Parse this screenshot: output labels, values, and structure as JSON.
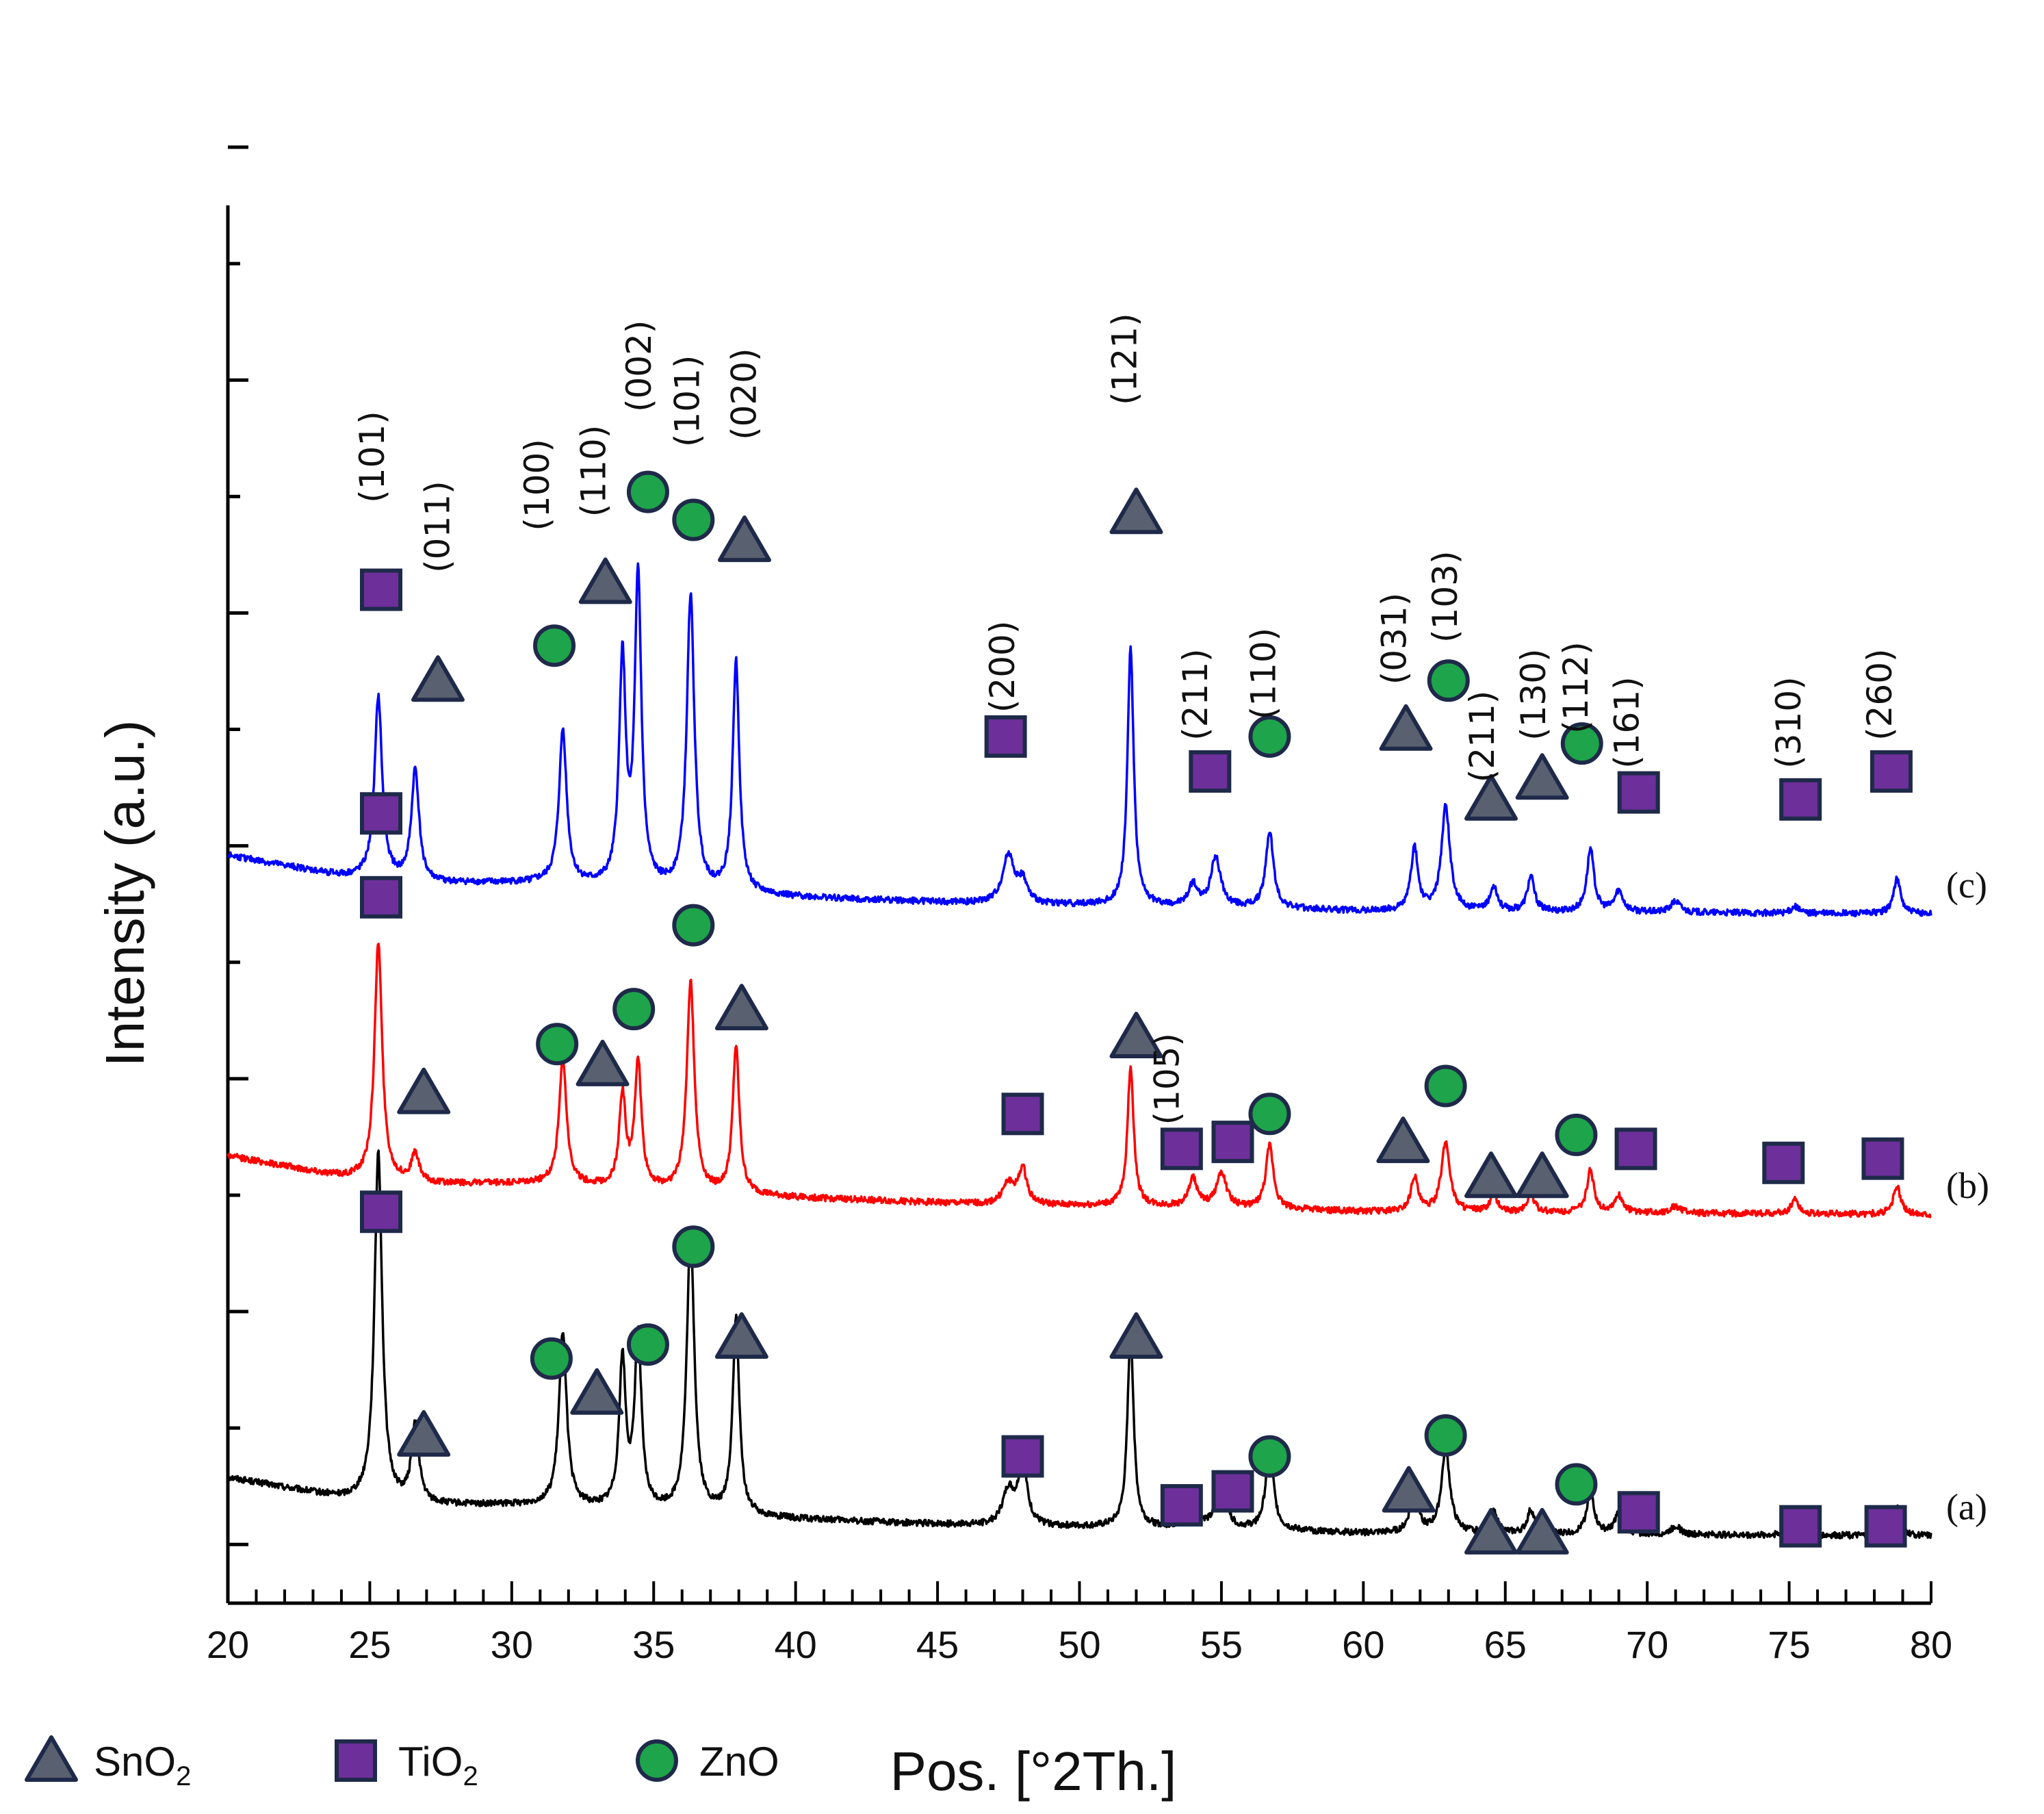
{
  "chart_data": {
    "type": "line",
    "title": "",
    "xlabel": "Pos. [°2Th.]",
    "ylabel": "Intensity (a.u.)",
    "xlim": [
      20,
      80
    ],
    "x_ticks": [
      "20",
      "25",
      "30",
      "35",
      "40",
      "45",
      "50",
      "55",
      "60",
      "65",
      "70",
      "75",
      "80"
    ],
    "ylim": [
      0,
      100
    ],
    "colors": {
      "SnO2": "#59606f",
      "TiO2": "#6d2f9a",
      "ZnO": "#1ea44a",
      "marker_edge": "#1f2a4a"
    },
    "legend": [
      {
        "marker": "triangle",
        "phase": "SnO2",
        "base": "SnO",
        "sub": "2"
      },
      {
        "marker": "square",
        "phase": "TiO2",
        "base": "TiO",
        "sub": "2"
      },
      {
        "marker": "circle",
        "phase": "ZnO",
        "base": "ZnO",
        "sub": ""
      }
    ],
    "background": [
      [
        20,
        5
      ],
      [
        24,
        3.5
      ],
      [
        27,
        3
      ],
      [
        31,
        3
      ],
      [
        40,
        2
      ],
      [
        47,
        1.5
      ],
      [
        55,
        1.3
      ],
      [
        60,
        1
      ],
      [
        80,
        0.8
      ]
    ],
    "series": [
      {
        "name": "(a)",
        "color": "#000000",
        "offset": 4,
        "peaks": [
          {
            "x": 25.3,
            "h": 25,
            "w": 0.16
          },
          {
            "x": 26.6,
            "h": 5.5,
            "w": 0.16
          },
          {
            "x": 31.8,
            "h": 12.5,
            "w": 0.16
          },
          {
            "x": 33.9,
            "h": 10.5,
            "w": 0.14
          },
          {
            "x": 34.45,
            "h": 12.5,
            "w": 0.14
          },
          {
            "x": 36.3,
            "h": 20,
            "w": 0.16
          },
          {
            "x": 37.9,
            "h": 14,
            "w": 0.14
          },
          {
            "x": 47.5,
            "h": 2.5,
            "w": 0.25
          },
          {
            "x": 48.0,
            "h": 4.5,
            "w": 0.18
          },
          {
            "x": 51.8,
            "h": 14,
            "w": 0.13
          },
          {
            "x": 54.0,
            "h": 2.5,
            "w": 0.18
          },
          {
            "x": 55.0,
            "h": 3.2,
            "w": 0.2
          },
          {
            "x": 56.7,
            "h": 6,
            "w": 0.16
          },
          {
            "x": 61.8,
            "h": 3.6,
            "w": 0.15
          },
          {
            "x": 62.9,
            "h": 6,
            "w": 0.18
          },
          {
            "x": 64.6,
            "h": 1.5,
            "w": 0.15
          },
          {
            "x": 65.9,
            "h": 1.7,
            "w": 0.15
          },
          {
            "x": 68.0,
            "h": 3.2,
            "w": 0.15
          },
          {
            "x": 69.0,
            "h": 1.5,
            "w": 0.18
          },
          {
            "x": 71.0,
            "h": 0.6,
            "w": 0.2
          },
          {
            "x": 75.2,
            "h": 1.5,
            "w": 0.15
          },
          {
            "x": 78.8,
            "h": 2,
            "w": 0.15
          }
        ],
        "markers": [
          {
            "type": "square",
            "x": 25.4,
            "y": 28
          },
          {
            "type": "triangle",
            "x": 26.9,
            "y": 12
          },
          {
            "type": "circle",
            "x": 31.4,
            "y": 17.5
          },
          {
            "type": "triangle",
            "x": 33.0,
            "y": 15
          },
          {
            "type": "circle",
            "x": 34.8,
            "y": 18.5
          },
          {
            "type": "circle",
            "x": 36.4,
            "y": 25.5
          },
          {
            "type": "triangle",
            "x": 38.1,
            "y": 19
          },
          {
            "type": "square",
            "x": 48.0,
            "y": 10.5
          },
          {
            "type": "triangle",
            "x": 52.0,
            "y": 19
          },
          {
            "type": "square",
            "x": 53.6,
            "y": 7
          },
          {
            "type": "square",
            "x": 55.4,
            "y": 8
          },
          {
            "type": "circle",
            "x": 56.7,
            "y": 10.5
          },
          {
            "type": "circle",
            "x": 62.9,
            "y": 12
          },
          {
            "type": "triangle",
            "x": 61.6,
            "y": 8
          },
          {
            "type": "triangle",
            "x": 64.5,
            "y": 5
          },
          {
            "type": "triangle",
            "x": 66.3,
            "y": 5
          },
          {
            "type": "circle",
            "x": 67.5,
            "y": 8.5
          },
          {
            "type": "square",
            "x": 69.7,
            "y": 6.5
          },
          {
            "type": "square",
            "x": 75.4,
            "y": 5.5
          },
          {
            "type": "square",
            "x": 78.4,
            "y": 5.5
          }
        ]
      },
      {
        "name": "(b)",
        "color": "#ff0000",
        "offset": 27,
        "peaks": [
          {
            "x": 25.3,
            "h": 17,
            "w": 0.16
          },
          {
            "x": 26.6,
            "h": 2,
            "w": 0.16
          },
          {
            "x": 31.8,
            "h": 9,
            "w": 0.16
          },
          {
            "x": 33.9,
            "h": 6.5,
            "w": 0.14
          },
          {
            "x": 34.45,
            "h": 9,
            "w": 0.14
          },
          {
            "x": 36.3,
            "h": 15,
            "w": 0.16
          },
          {
            "x": 37.9,
            "h": 10.5,
            "w": 0.14
          },
          {
            "x": 47.5,
            "h": 1.5,
            "w": 0.25
          },
          {
            "x": 48.0,
            "h": 2.5,
            "w": 0.18
          },
          {
            "x": 51.8,
            "h": 10,
            "w": 0.13
          },
          {
            "x": 54.0,
            "h": 2,
            "w": 0.18
          },
          {
            "x": 55.0,
            "h": 2.5,
            "w": 0.2
          },
          {
            "x": 56.7,
            "h": 4.5,
            "w": 0.16
          },
          {
            "x": 61.8,
            "h": 2.5,
            "w": 0.15
          },
          {
            "x": 62.9,
            "h": 5,
            "w": 0.18
          },
          {
            "x": 64.6,
            "h": 1.2,
            "w": 0.15
          },
          {
            "x": 65.9,
            "h": 1.3,
            "w": 0.15
          },
          {
            "x": 68.0,
            "h": 3,
            "w": 0.15
          },
          {
            "x": 69.0,
            "h": 1.2,
            "w": 0.18
          },
          {
            "x": 71.0,
            "h": 0.5,
            "w": 0.2
          },
          {
            "x": 75.2,
            "h": 1.1,
            "w": 0.15
          },
          {
            "x": 78.8,
            "h": 2,
            "w": 0.15
          }
        ],
        "markers": [
          {
            "type": "square",
            "x": 25.4,
            "y": 50.5
          },
          {
            "type": "triangle",
            "x": 26.9,
            "y": 36.5
          },
          {
            "type": "circle",
            "x": 31.6,
            "y": 40
          },
          {
            "type": "triangle",
            "x": 33.2,
            "y": 38.5
          },
          {
            "type": "circle",
            "x": 34.3,
            "y": 42.5
          },
          {
            "type": "circle",
            "x": 36.4,
            "y": 48.5
          },
          {
            "type": "triangle",
            "x": 38.1,
            "y": 42.5
          },
          {
            "type": "triangle",
            "x": 52.0,
            "y": 40.5
          },
          {
            "type": "square",
            "x": 48.0,
            "y": 35
          },
          {
            "type": "square",
            "x": 53.6,
            "y": 32.5
          },
          {
            "type": "square",
            "x": 55.4,
            "y": 33
          },
          {
            "type": "circle",
            "x": 56.7,
            "y": 35
          },
          {
            "type": "circle",
            "x": 62.9,
            "y": 37
          },
          {
            "type": "triangle",
            "x": 61.4,
            "y": 33
          },
          {
            "type": "triangle",
            "x": 64.5,
            "y": 30.5
          },
          {
            "type": "triangle",
            "x": 66.3,
            "y": 30.5
          },
          {
            "type": "circle",
            "x": 67.5,
            "y": 33.5
          },
          {
            "type": "square",
            "x": 69.6,
            "y": 32.5
          },
          {
            "type": "square",
            "x": 74.8,
            "y": 31.5
          },
          {
            "type": "square",
            "x": 78.3,
            "y": 31.8
          }
        ]
      },
      {
        "name": "(c)",
        "color": "#0000ff",
        "offset": 48.5,
        "peaks": [
          {
            "x": 25.3,
            "h": 13,
            "w": 0.16
          },
          {
            "x": 26.6,
            "h": 8,
            "w": 0.16
          },
          {
            "x": 31.8,
            "h": 11,
            "w": 0.16
          },
          {
            "x": 33.9,
            "h": 16,
            "w": 0.14
          },
          {
            "x": 34.45,
            "h": 22,
            "w": 0.14
          },
          {
            "x": 36.3,
            "h": 21,
            "w": 0.16
          },
          {
            "x": 37.9,
            "h": 16.5,
            "w": 0.14
          },
          {
            "x": 47.5,
            "h": 3.5,
            "w": 0.25
          },
          {
            "x": 48.0,
            "h": 1.5,
            "w": 0.18
          },
          {
            "x": 51.8,
            "h": 18.5,
            "w": 0.13
          },
          {
            "x": 54.0,
            "h": 1.5,
            "w": 0.18
          },
          {
            "x": 54.8,
            "h": 3.5,
            "w": 0.2
          },
          {
            "x": 56.7,
            "h": 5.5,
            "w": 0.16
          },
          {
            "x": 61.8,
            "h": 4.5,
            "w": 0.15
          },
          {
            "x": 62.9,
            "h": 7.5,
            "w": 0.18
          },
          {
            "x": 64.6,
            "h": 1.8,
            "w": 0.15
          },
          {
            "x": 65.9,
            "h": 2.5,
            "w": 0.15
          },
          {
            "x": 68.0,
            "h": 4.5,
            "w": 0.15
          },
          {
            "x": 69.0,
            "h": 1.5,
            "w": 0.18
          },
          {
            "x": 71.0,
            "h": 0.8,
            "w": 0.2
          },
          {
            "x": 75.2,
            "h": 0.5,
            "w": 0.15
          },
          {
            "x": 78.8,
            "h": 2.5,
            "w": 0.15
          }
        ],
        "markers": [
          {
            "type": "square",
            "x": 25.4,
            "y": 72.5
          },
          {
            "type": "triangle",
            "x": 27.4,
            "y": 66
          },
          {
            "type": "circle",
            "x": 31.5,
            "y": 68.5
          },
          {
            "type": "triangle",
            "x": 33.3,
            "y": 73
          },
          {
            "type": "circle",
            "x": 34.8,
            "y": 79.5
          },
          {
            "type": "circle",
            "x": 36.4,
            "y": 77.5
          },
          {
            "type": "triangle",
            "x": 38.2,
            "y": 76
          },
          {
            "type": "triangle",
            "x": 52.0,
            "y": 78
          },
          {
            "type": "square",
            "x": 47.4,
            "y": 62
          },
          {
            "type": "square",
            "x": 54.6,
            "y": 59.5
          },
          {
            "type": "circle",
            "x": 56.7,
            "y": 62
          },
          {
            "type": "triangle",
            "x": 61.5,
            "y": 62.5
          },
          {
            "type": "circle",
            "x": 63.0,
            "y": 66
          },
          {
            "type": "triangle",
            "x": 64.5,
            "y": 57.5
          },
          {
            "type": "triangle",
            "x": 66.3,
            "y": 59
          },
          {
            "type": "circle",
            "x": 67.7,
            "y": 61.5
          },
          {
            "type": "square",
            "x": 69.7,
            "y": 58
          },
          {
            "type": "square",
            "x": 75.4,
            "y": 57.5
          },
          {
            "type": "square",
            "x": 78.6,
            "y": 59.5
          },
          {
            "type": "square",
            "x": 25.4,
            "y": 56.5
          }
        ]
      }
    ],
    "annotations": [
      {
        "text": "(101)",
        "x": 25.5,
        "y": 82
      },
      {
        "text": "(011)",
        "x": 27.8,
        "y": 77
      },
      {
        "text": "(100)",
        "x": 31.3,
        "y": 80
      },
      {
        "text": "(110)",
        "x": 33.3,
        "y": 81
      },
      {
        "text": "(002)",
        "x": 34.9,
        "y": 88.5
      },
      {
        "text": "(101)",
        "x": 36.6,
        "y": 86
      },
      {
        "text": "(020)",
        "x": 38.6,
        "y": 86.5
      },
      {
        "text": "(121)",
        "x": 52.0,
        "y": 89
      },
      {
        "text": "(200)",
        "x": 47.7,
        "y": 67
      },
      {
        "text": "(211)",
        "x": 54.5,
        "y": 65
      },
      {
        "text": "(110)",
        "x": 56.9,
        "y": 66.5
      },
      {
        "text": "(031)",
        "x": 61.5,
        "y": 69
      },
      {
        "text": "(103)",
        "x": 63.3,
        "y": 72
      },
      {
        "text": "(211)",
        "x": 64.6,
        "y": 62
      },
      {
        "text": "(130)",
        "x": 66.4,
        "y": 65
      },
      {
        "text": "(112)",
        "x": 67.9,
        "y": 65.5
      },
      {
        "text": "(161)",
        "x": 69.7,
        "y": 63
      },
      {
        "text": "(310)",
        "x": 75.4,
        "y": 63
      },
      {
        "text": "(260)",
        "x": 78.6,
        "y": 65
      },
      {
        "text": "(105)",
        "x": 53.5,
        "y": 37.5
      }
    ]
  }
}
